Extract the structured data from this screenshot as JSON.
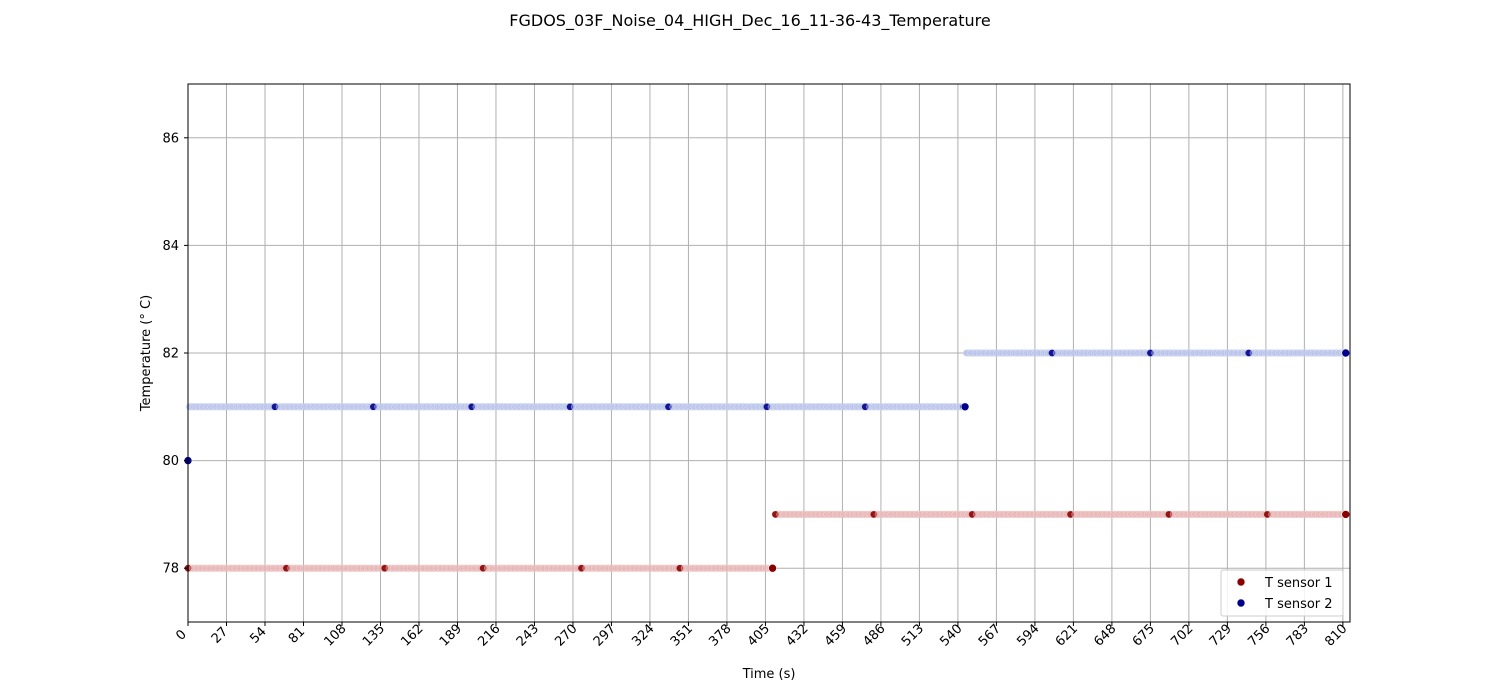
{
  "chart_data": {
    "type": "scatter",
    "title": "FGDOS_03F_Noise_04_HIGH_Dec_16_11-36-43_Temperature",
    "xlabel": "Time (s)",
    "ylabel": "Temperature (° C)",
    "xlim": [
      0,
      815
    ],
    "ylim": [
      77,
      87
    ],
    "xticks": [
      0,
      27,
      54,
      81,
      108,
      135,
      162,
      189,
      216,
      243,
      270,
      297,
      324,
      351,
      378,
      405,
      432,
      459,
      486,
      513,
      540,
      567,
      594,
      621,
      648,
      675,
      702,
      729,
      756,
      783,
      810
    ],
    "yticks": [
      78,
      80,
      82,
      84,
      86
    ],
    "grid": true,
    "legend_position": "bottom-right",
    "colors": {
      "T sensor 1": "#8b0000",
      "T sensor 2": "#00008b"
    },
    "series": [
      {
        "name": "T sensor 1",
        "segments": [
          {
            "x_start": 0,
            "x_end": 410,
            "y": 78
          },
          {
            "x_start": 412,
            "x_end": 812,
            "y": 79
          }
        ],
        "highlight_points": [
          [
            410,
            78
          ],
          [
            812,
            79
          ]
        ]
      },
      {
        "name": "T sensor 2",
        "segments": [
          {
            "x_start": 0,
            "x_end": 0,
            "y": 80
          },
          {
            "x_start": 1,
            "x_end": 545,
            "y": 81
          },
          {
            "x_start": 546,
            "x_end": 812,
            "y": 82
          }
        ],
        "highlight_points": [
          [
            0,
            80
          ],
          [
            545,
            81
          ],
          [
            812,
            82
          ]
        ]
      }
    ]
  }
}
